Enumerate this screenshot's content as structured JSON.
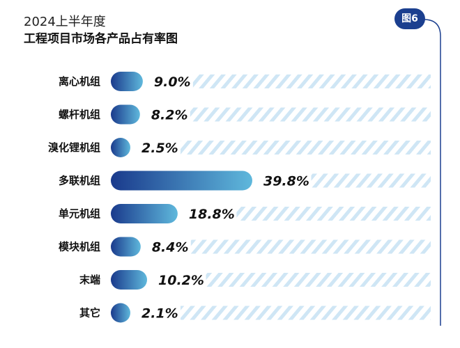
{
  "header": {
    "title": "2024上半年度",
    "subtitle": "工程项目市场各产品占有率图",
    "badge": "图6"
  },
  "colors": {
    "bar_start": "#1a3a8c",
    "bar_end": "#5fb8dc",
    "stripe": "#cfe6f5",
    "border": "#1b3f8f"
  },
  "chart_data": {
    "type": "bar",
    "orientation": "horizontal",
    "categories": [
      "离心机组",
      "螺杆机组",
      "溴化锂机组",
      "多联机组",
      "单元机组",
      "模块机组",
      "末端",
      "其它"
    ],
    "values": [
      9.0,
      8.2,
      2.5,
      39.8,
      18.8,
      8.4,
      10.2,
      2.1
    ],
    "value_labels": [
      "9.0%",
      "8.2%",
      "2.5%",
      "39.8%",
      "18.8%",
      "8.4%",
      "10.2%",
      "2.1%"
    ],
    "xlim": [
      0,
      100
    ],
    "grid": false,
    "legend": "none"
  }
}
